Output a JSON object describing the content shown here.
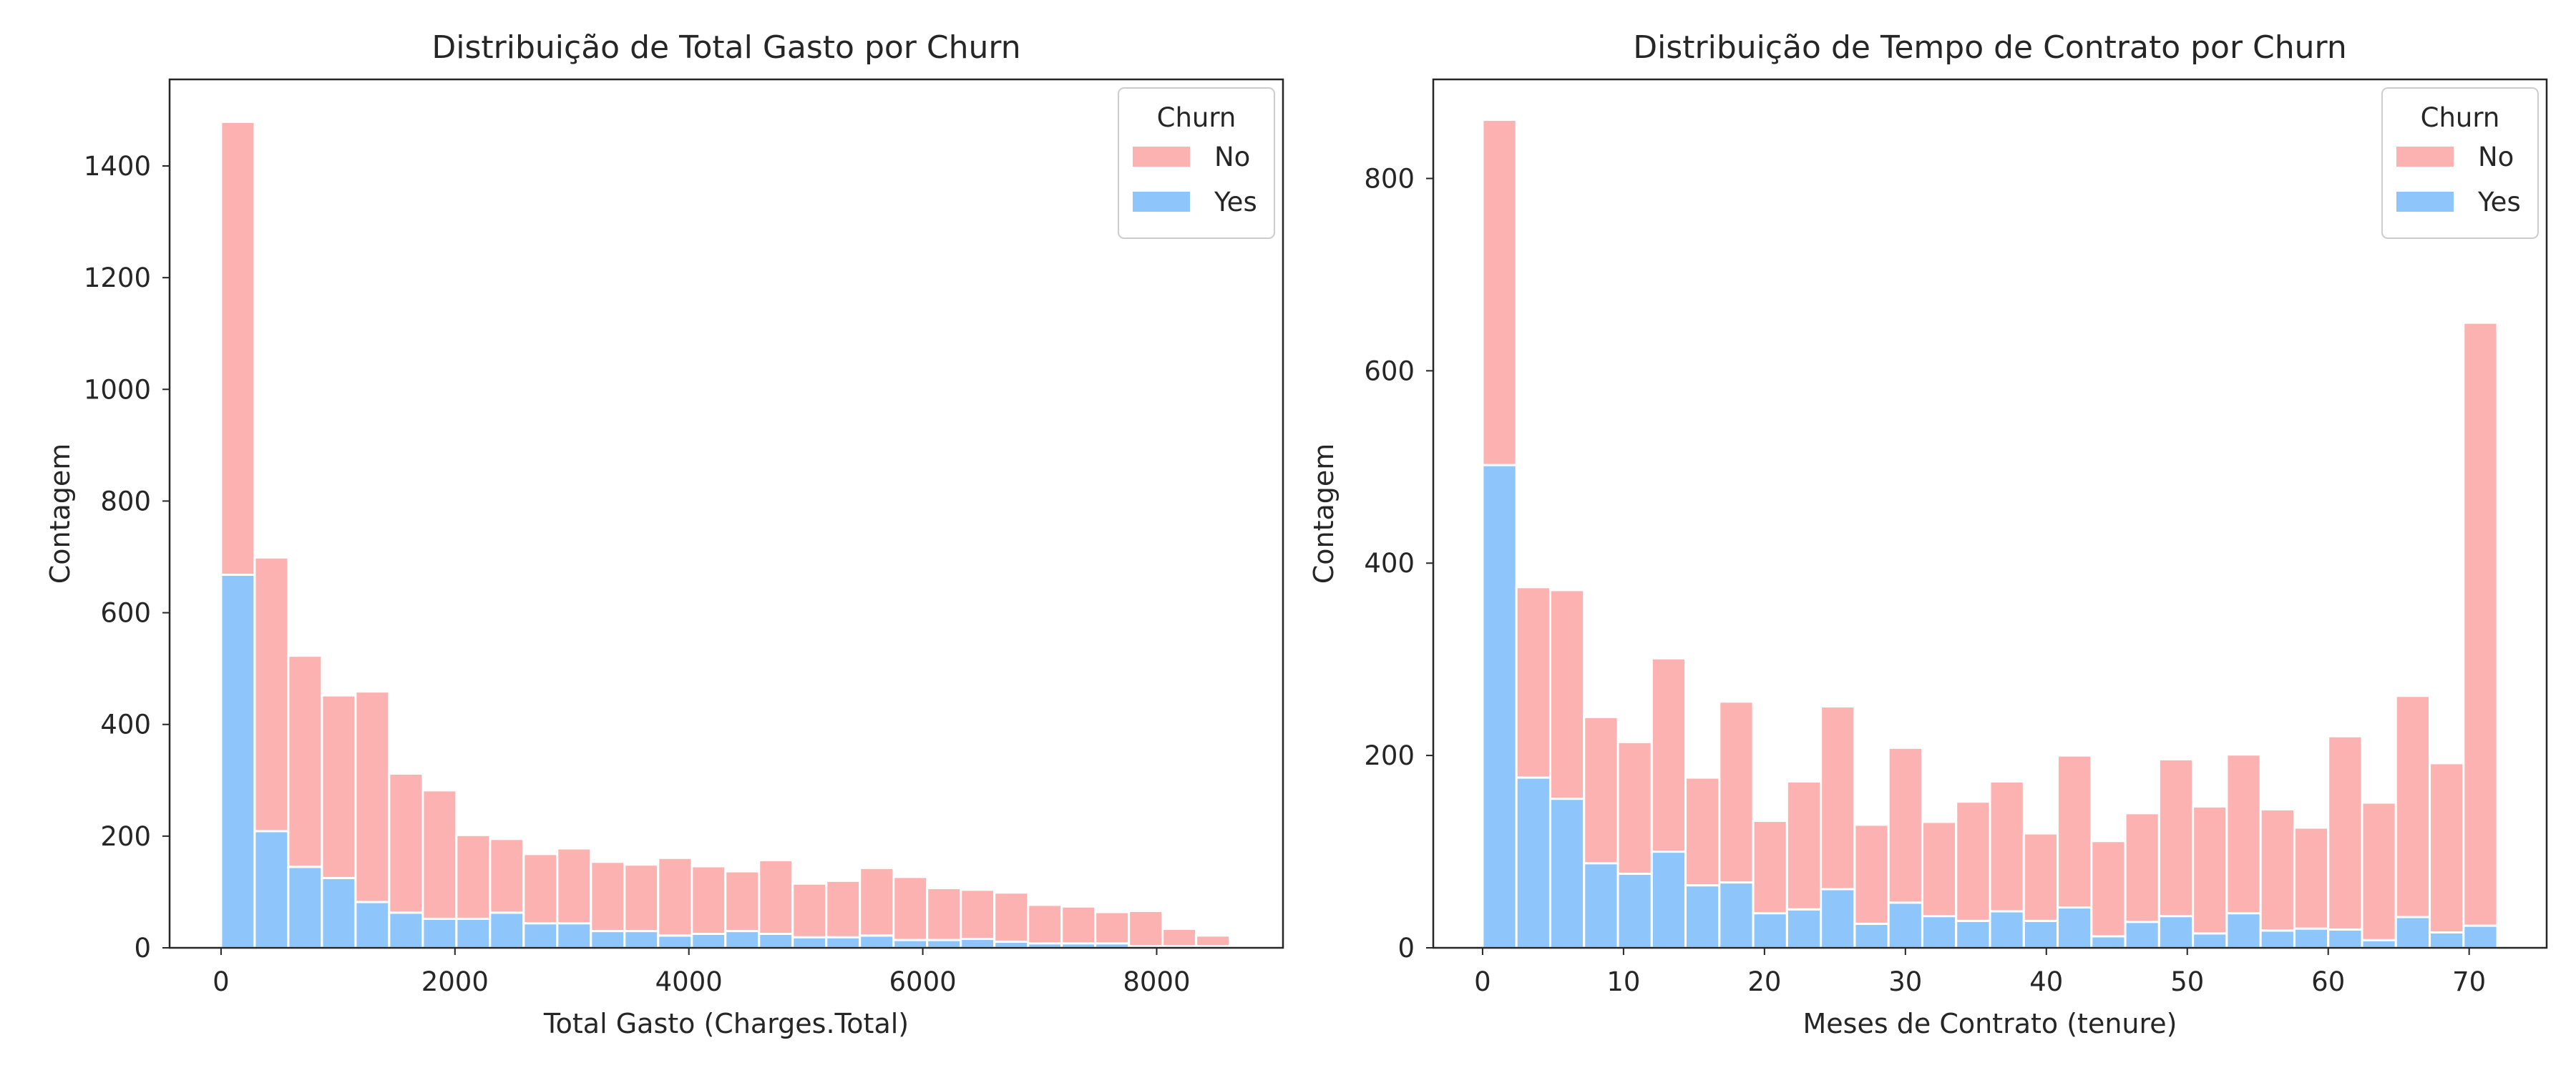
{
  "chart_data": [
    {
      "type": "bar",
      "stacked": true,
      "title": "Distribuição de Total Gasto por Churn",
      "xlabel": "Total Gasto (Charges.Total)",
      "ylabel": "Contagem",
      "xlim": [
        -440,
        9080
      ],
      "ylim": [
        0,
        1555
      ],
      "xticks": [
        0,
        2000,
        4000,
        6000,
        8000
      ],
      "yticks": [
        0,
        200,
        400,
        600,
        800,
        1000,
        1200,
        1400
      ],
      "grid": false,
      "legend": {
        "title": "Churn",
        "position": "top-right",
        "entries": [
          "No",
          "Yes"
        ]
      },
      "bin_edges": [
        0,
        287.5,
        575,
        862.5,
        1150,
        1437.5,
        1725,
        2012.5,
        2300,
        2587.5,
        2875,
        3162.5,
        3450,
        3737.5,
        4025,
        4312.5,
        4600,
        4887.5,
        5175,
        5462.5,
        5750,
        6037.5,
        6325,
        6612.5,
        6900,
        7187.5,
        7475,
        7762.5,
        8050,
        8337.5,
        8625
      ],
      "series": [
        {
          "name": "Yes",
          "color": "#8ec5fb",
          "values": [
            668,
            209,
            145,
            125,
            82,
            63,
            52,
            52,
            63,
            44,
            44,
            30,
            30,
            22,
            25,
            30,
            25,
            19,
            19,
            22,
            14,
            14,
            16,
            11,
            8,
            8,
            8,
            3,
            3,
            3
          ]
        },
        {
          "name": "No",
          "color": "#fdb2b2",
          "values": [
            811,
            490,
            378,
            327,
            377,
            249,
            230,
            150,
            132,
            124,
            134,
            124,
            119,
            139,
            121,
            107,
            132,
            96,
            101,
            121,
            113,
            93,
            88,
            88,
            69,
            66,
            56,
            63,
            31,
            19
          ]
        }
      ]
    },
    {
      "type": "bar",
      "stacked": true,
      "title": "Distribuição de Tempo de Contrato por Churn",
      "xlabel": "Meses de Contrato (tenure)",
      "ylabel": "Contagem",
      "xlim": [
        -3.5,
        75.5
      ],
      "ylim": [
        0,
        903
      ],
      "xticks": [
        0,
        10,
        20,
        30,
        40,
        50,
        60,
        70
      ],
      "yticks": [
        0,
        200,
        400,
        600,
        800
      ],
      "grid": false,
      "legend": {
        "title": "Churn",
        "position": "top-right",
        "entries": [
          "No",
          "Yes"
        ]
      },
      "bin_edges": [
        0,
        2.4,
        4.8,
        7.2,
        9.6,
        12,
        14.4,
        16.8,
        19.2,
        21.6,
        24,
        26.4,
        28.8,
        31.2,
        33.6,
        36,
        38.4,
        40.8,
        43.2,
        45.6,
        48,
        50.4,
        52.8,
        55.2,
        57.6,
        60,
        62.4,
        64.8,
        67.2,
        69.6,
        72
      ],
      "series": [
        {
          "name": "Yes",
          "color": "#8ec5fb",
          "values": [
            502,
            177,
            155,
            88,
            77,
            100,
            65,
            68,
            36,
            40,
            61,
            25,
            47,
            33,
            28,
            38,
            28,
            42,
            12,
            27,
            33,
            15,
            36,
            18,
            20,
            19,
            8,
            32,
            16,
            23
          ]
        },
        {
          "name": "No",
          "color": "#fdb2b2",
          "values": [
            359,
            198,
            217,
            152,
            137,
            201,
            112,
            188,
            96,
            133,
            190,
            103,
            161,
            98,
            124,
            135,
            91,
            158,
            99,
            113,
            163,
            132,
            165,
            126,
            105,
            201,
            143,
            230,
            176,
            627
          ]
        }
      ]
    }
  ]
}
